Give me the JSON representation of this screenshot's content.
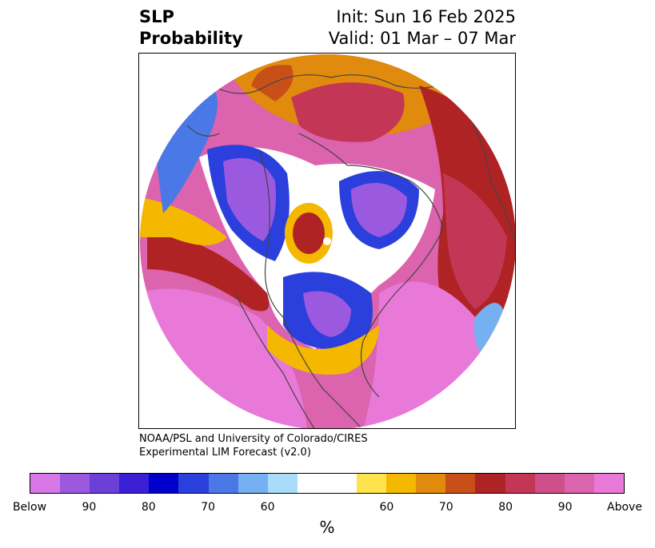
{
  "header": {
    "title_line1": "SLP",
    "title_line2": "Probability",
    "init_text": "Init: Sun 16 Feb 2025",
    "valid_text": "Valid: 01 Mar – 07 Mar"
  },
  "credit": {
    "line1": "NOAA/PSL and University of Colorado/CIRES",
    "line2": "Experimental LIM Forecast (v2.0)"
  },
  "colorbar": {
    "colors": [
      "#d877e8",
      "#9b59e0",
      "#6c3fd8",
      "#3b1fd4",
      "#0000cc",
      "#2a3fdc",
      "#4a78e6",
      "#74b0f2",
      "#a9dcf9",
      "#ffffff",
      "#ffffff",
      "#ffe34d",
      "#f5b800",
      "#e08a0e",
      "#c85018",
      "#b02324",
      "#c33656",
      "#cf4f8a",
      "#dc63ad",
      "#e879d9"
    ],
    "tick_labels": [
      "Below",
      "90",
      "80",
      "70",
      "60",
      "60",
      "70",
      "80",
      "90",
      "Above"
    ],
    "unit": "%"
  },
  "colors": {
    "above_high": "#e879d9",
    "above_mid": "#dc63ad",
    "above_low": "#b02324",
    "below_high": "#9b59e0",
    "below_mid": "#0000cc",
    "below_low": "#a9dcf9",
    "coastline": "#444444"
  }
}
